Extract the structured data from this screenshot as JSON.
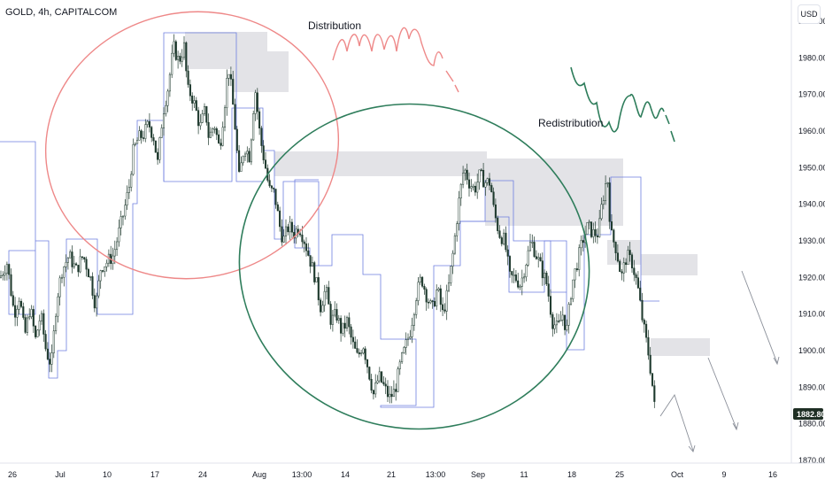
{
  "header": {
    "ticker": "GOLD, 4h, CAPITALCOM",
    "currency": "USD"
  },
  "chart_data": {
    "type": "candlestick",
    "symbol": "GOLD",
    "interval": "4h",
    "source": "CAPITALCOM",
    "ylim": [
      1868,
      1996
    ],
    "y_ticks": [
      1870,
      1880,
      1890,
      1900,
      1910,
      1920,
      1930,
      1940,
      1950,
      1960,
      1970,
      1980,
      1990
    ],
    "x_tick_labels": [
      "26",
      "Jul",
      "10",
      "17",
      "24",
      "Aug",
      "13:00",
      "14",
      "21",
      "13:00",
      "Sep",
      "11",
      "18",
      "25",
      "Oct",
      "9",
      "16"
    ],
    "last_price": "1882.80",
    "annotations": [
      "Distribution",
      "Redistribution"
    ],
    "price_path": [
      [
        0,
        1920
      ],
      [
        8,
        1924
      ],
      [
        16,
        1910
      ],
      [
        22,
        1915
      ],
      [
        28,
        1904
      ],
      [
        34,
        1912
      ],
      [
        40,
        1903
      ],
      [
        46,
        1910
      ],
      [
        52,
        1900
      ],
      [
        58,
        1896
      ],
      [
        64,
        1914
      ],
      [
        70,
        1922
      ],
      [
        78,
        1926
      ],
      [
        86,
        1922
      ],
      [
        94,
        1926
      ],
      [
        102,
        1920
      ],
      [
        108,
        1912
      ],
      [
        114,
        1923
      ],
      [
        120,
        1924
      ],
      [
        128,
        1926
      ],
      [
        134,
        1932
      ],
      [
        140,
        1938
      ],
      [
        146,
        1945
      ],
      [
        150,
        1954
      ],
      [
        156,
        1958
      ],
      [
        162,
        1959
      ],
      [
        168,
        1962
      ],
      [
        174,
        1958
      ],
      [
        178,
        1951
      ],
      [
        184,
        1965
      ],
      [
        190,
        1972
      ],
      [
        196,
        1983
      ],
      [
        202,
        1979
      ],
      [
        208,
        1983
      ],
      [
        212,
        1971
      ],
      [
        216,
        1970
      ],
      [
        220,
        1967
      ],
      [
        226,
        1961
      ],
      [
        232,
        1966
      ],
      [
        236,
        1958
      ],
      [
        242,
        1962
      ],
      [
        248,
        1955
      ],
      [
        254,
        1968
      ],
      [
        258,
        1978
      ],
      [
        262,
        1970
      ],
      [
        266,
        1960
      ],
      [
        270,
        1947
      ],
      [
        276,
        1956
      ],
      [
        282,
        1953
      ],
      [
        288,
        1972
      ],
      [
        294,
        1958
      ],
      [
        300,
        1950
      ],
      [
        304,
        1944
      ],
      [
        310,
        1943
      ],
      [
        316,
        1934
      ],
      [
        320,
        1930
      ],
      [
        326,
        1934
      ],
      [
        332,
        1932
      ],
      [
        338,
        1934
      ],
      [
        344,
        1930
      ],
      [
        350,
        1925
      ],
      [
        356,
        1920
      ],
      [
        362,
        1912
      ],
      [
        368,
        1917
      ],
      [
        374,
        1908
      ],
      [
        380,
        1910
      ],
      [
        386,
        1905
      ],
      [
        392,
        1908
      ],
      [
        398,
        1902
      ],
      [
        404,
        1898
      ],
      [
        410,
        1902
      ],
      [
        416,
        1895
      ],
      [
        422,
        1888
      ],
      [
        428,
        1893
      ],
      [
        434,
        1890
      ],
      [
        440,
        1887
      ],
      [
        446,
        1889
      ],
      [
        452,
        1896
      ],
      [
        458,
        1901
      ],
      [
        464,
        1906
      ],
      [
        470,
        1915
      ],
      [
        476,
        1920
      ],
      [
        482,
        1915
      ],
      [
        488,
        1911
      ],
      [
        494,
        1917
      ],
      [
        500,
        1910
      ],
      [
        506,
        1916
      ],
      [
        512,
        1927
      ],
      [
        518,
        1940
      ],
      [
        524,
        1950
      ],
      [
        530,
        1946
      ],
      [
        536,
        1944
      ],
      [
        542,
        1948
      ],
      [
        548,
        1946
      ],
      [
        554,
        1946
      ],
      [
        558,
        1938
      ],
      [
        564,
        1932
      ],
      [
        570,
        1930
      ],
      [
        576,
        1920
      ],
      [
        582,
        1920
      ],
      [
        588,
        1918
      ],
      [
        594,
        1924
      ],
      [
        600,
        1930
      ],
      [
        606,
        1926
      ],
      [
        612,
        1922
      ],
      [
        618,
        1918
      ],
      [
        624,
        1908
      ],
      [
        630,
        1906
      ],
      [
        636,
        1910
      ],
      [
        640,
        1905
      ],
      [
        646,
        1918
      ],
      [
        652,
        1924
      ],
      [
        658,
        1930
      ],
      [
        664,
        1934
      ],
      [
        670,
        1932
      ],
      [
        676,
        1932
      ],
      [
        680,
        1940
      ],
      [
        686,
        1948
      ],
      [
        690,
        1932
      ],
      [
        696,
        1928
      ],
      [
        702,
        1920
      ],
      [
        708,
        1926
      ],
      [
        714,
        1924
      ],
      [
        720,
        1918
      ],
      [
        726,
        1908
      ],
      [
        732,
        1900
      ],
      [
        736,
        1893
      ],
      [
        740,
        1883
      ]
    ]
  },
  "drawings": {
    "demand_zones_color": "#e0e0e4",
    "step_line_color": "#5b6bd6",
    "red_circle_color": "#e57373",
    "green_circle_color": "#2e7d5b",
    "candle_color": "#1f3a2e"
  }
}
